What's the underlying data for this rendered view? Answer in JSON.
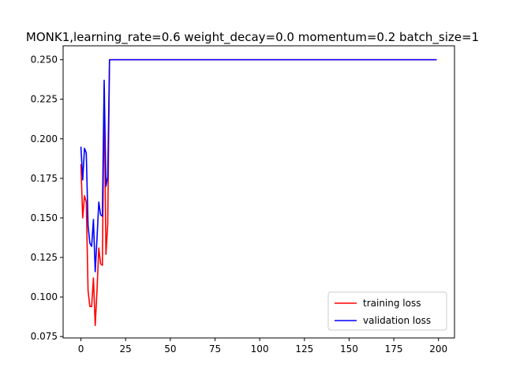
{
  "chart_data": {
    "type": "line",
    "title": "MONK1,learning_rate=0.6  weight_decay=0.0  momentum=0.2  batch_size=1",
    "xlabel": "",
    "ylabel": "",
    "xlim": [
      -9.95,
      208.95
    ],
    "ylim": [
      0.0741,
      0.2588
    ],
    "xticks": [
      0,
      25,
      50,
      75,
      100,
      125,
      150,
      175,
      200
    ],
    "xtick_labels": [
      "0",
      "25",
      "50",
      "75",
      "100",
      "125",
      "150",
      "175",
      "200"
    ],
    "yticks": [
      0.075,
      0.1,
      0.125,
      0.15,
      0.175,
      0.2,
      0.225,
      0.25
    ],
    "ytick_labels": [
      "0.075",
      "0.100",
      "0.125",
      "0.150",
      "0.175",
      "0.200",
      "0.225",
      "0.250"
    ],
    "grid": false,
    "legend_position": "lower-right",
    "series": [
      {
        "name": "training loss",
        "color": "#ff0000",
        "x": [
          0,
          1,
          2,
          3,
          4,
          5,
          6,
          7,
          8,
          9,
          10,
          11,
          12,
          13,
          14,
          15,
          16,
          17,
          199
        ],
        "y": [
          0.184,
          0.15,
          0.164,
          0.16,
          0.104,
          0.094,
          0.094,
          0.112,
          0.082,
          0.104,
          0.131,
          0.121,
          0.12,
          0.229,
          0.127,
          0.146,
          0.25,
          0.25,
          0.25
        ]
      },
      {
        "name": "validation loss",
        "color": "#0000ff",
        "x": [
          0,
          1,
          2,
          3,
          4,
          5,
          6,
          7,
          8,
          9,
          10,
          11,
          12,
          13,
          14,
          15,
          16,
          17,
          199
        ],
        "y": [
          0.195,
          0.174,
          0.194,
          0.191,
          0.145,
          0.134,
          0.132,
          0.149,
          0.116,
          0.137,
          0.16,
          0.152,
          0.151,
          0.237,
          0.17,
          0.176,
          0.25,
          0.25,
          0.25
        ]
      }
    ]
  }
}
